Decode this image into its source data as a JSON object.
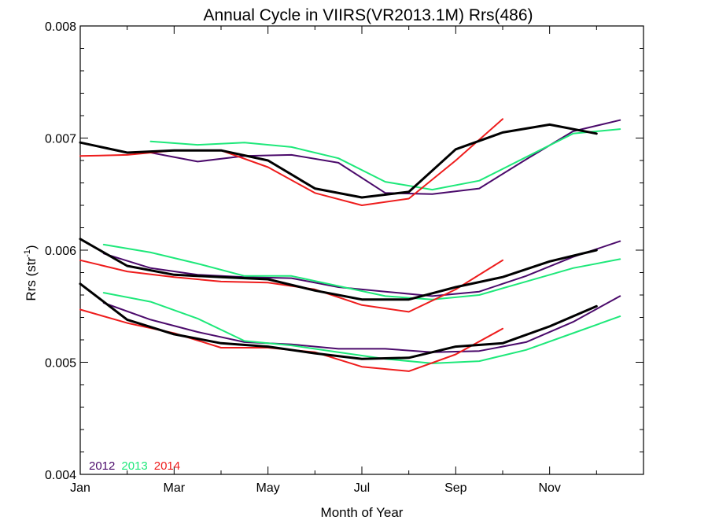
{
  "chart_data": {
    "type": "line",
    "title": "Annual Cycle in VIIRS(VR2013.1M) Rrs(486)",
    "xlabel": "Month of Year",
    "ylabel_main": "Rrs (str",
    "ylabel_sup": "-1",
    "ylabel_close": ")",
    "xlim": [
      1,
      13
    ],
    "ylim": [
      0.004,
      0.008
    ],
    "xticks": [
      {
        "value": 1,
        "label": "Jan"
      },
      {
        "value": 3,
        "label": "Mar"
      },
      {
        "value": 5,
        "label": "May"
      },
      {
        "value": 7,
        "label": "Jul"
      },
      {
        "value": 9,
        "label": "Sep"
      },
      {
        "value": 11,
        "label": "Nov"
      }
    ],
    "xminor": [
      2,
      4,
      6,
      8,
      10,
      12
    ],
    "yticks": [
      {
        "value": 0.004,
        "label": "0.004"
      },
      {
        "value": 0.005,
        "label": "0.005"
      },
      {
        "value": 0.006,
        "label": "0.006"
      },
      {
        "value": 0.007,
        "label": "0.007"
      },
      {
        "value": 0.008,
        "label": "0.008"
      }
    ],
    "legend_position": "bottom-left",
    "legend": [
      {
        "label": "2012",
        "color": "#4b0a6b"
      },
      {
        "label": "2013",
        "color": "#1ee87a"
      },
      {
        "label": "2014",
        "color": "#ee1c1c"
      }
    ],
    "series": [
      {
        "group": "upper",
        "year": "2012",
        "color": "#4b0a6b",
        "width": 2,
        "x": [
          2.5,
          3.5,
          4.5,
          5.5,
          6.5,
          7.5,
          8.5,
          9.5,
          10.5,
          11.5,
          12.5
        ],
        "y": [
          0.00687,
          0.00679,
          0.00684,
          0.00685,
          0.00678,
          0.00651,
          0.0065,
          0.00655,
          0.00681,
          0.00706,
          0.00716
        ]
      },
      {
        "group": "upper",
        "year": "2013",
        "color": "#1ee87a",
        "width": 2,
        "x": [
          2.5,
          3.5,
          4.5,
          5.5,
          6.5,
          7.5,
          8.5,
          9.5,
          10.5,
          11.5,
          12.5
        ],
        "y": [
          0.00697,
          0.00694,
          0.00696,
          0.00692,
          0.00682,
          0.00661,
          0.00654,
          0.00662,
          0.00683,
          0.00704,
          0.00708
        ]
      },
      {
        "group": "upper",
        "year": "2014",
        "color": "#ee1c1c",
        "width": 2,
        "x": [
          1,
          2,
          3,
          4,
          5,
          6,
          7,
          8,
          9,
          10
        ],
        "y": [
          0.00684,
          0.00685,
          0.00689,
          0.00689,
          0.00674,
          0.00651,
          0.0064,
          0.00646,
          0.0068,
          0.00717
        ]
      },
      {
        "group": "upper",
        "year": "mean",
        "color": "#000000",
        "width": 3,
        "x": [
          1,
          2,
          3,
          4,
          5,
          6,
          7,
          8,
          9,
          10,
          11,
          12
        ],
        "y": [
          0.00696,
          0.00687,
          0.00689,
          0.00689,
          0.0068,
          0.00655,
          0.00647,
          0.00652,
          0.0069,
          0.00705,
          0.00712,
          0.00704
        ]
      },
      {
        "group": "middle",
        "year": "2012",
        "color": "#4b0a6b",
        "width": 2,
        "x": [
          1.5,
          2.5,
          3.5,
          4.5,
          5.5,
          6.5,
          7.5,
          8.5,
          9.5,
          10.5,
          11.5,
          12.5
        ],
        "y": [
          0.00597,
          0.00584,
          0.00578,
          0.00576,
          0.00575,
          0.00567,
          0.00563,
          0.00559,
          0.00563,
          0.00577,
          0.00594,
          0.00608
        ]
      },
      {
        "group": "middle",
        "year": "2013",
        "color": "#1ee87a",
        "width": 2,
        "x": [
          1.5,
          2.5,
          3.5,
          4.5,
          5.5,
          6.5,
          7.5,
          8.5,
          9.5,
          10.5,
          11.5,
          12.5
        ],
        "y": [
          0.00605,
          0.00598,
          0.00588,
          0.00577,
          0.00577,
          0.00568,
          0.00559,
          0.00556,
          0.0056,
          0.00572,
          0.00584,
          0.00592
        ]
      },
      {
        "group": "middle",
        "year": "2014",
        "color": "#ee1c1c",
        "width": 2,
        "x": [
          1,
          2,
          3,
          4,
          5,
          6,
          7,
          8,
          9,
          10
        ],
        "y": [
          0.00591,
          0.00581,
          0.00576,
          0.00572,
          0.00571,
          0.00565,
          0.00551,
          0.00545,
          0.00565,
          0.00591
        ]
      },
      {
        "group": "middle",
        "year": "mean",
        "color": "#000000",
        "width": 3,
        "x": [
          1,
          2,
          3,
          4,
          5,
          6,
          7,
          8,
          9,
          10,
          11,
          12
        ],
        "y": [
          0.0061,
          0.00586,
          0.00578,
          0.00576,
          0.00574,
          0.00564,
          0.00556,
          0.00556,
          0.00567,
          0.00576,
          0.0059,
          0.006
        ]
      },
      {
        "group": "lower",
        "year": "2012",
        "color": "#4b0a6b",
        "width": 2,
        "x": [
          1.5,
          2.5,
          3.5,
          4.5,
          5.5,
          6.5,
          7.5,
          8.5,
          9.5,
          10.5,
          11.5,
          12.5
        ],
        "y": [
          0.00553,
          0.00538,
          0.00527,
          0.00518,
          0.00516,
          0.00512,
          0.00512,
          0.00509,
          0.0051,
          0.00518,
          0.00536,
          0.00559
        ]
      },
      {
        "group": "lower",
        "year": "2013",
        "color": "#1ee87a",
        "width": 2,
        "x": [
          1.5,
          2.5,
          3.5,
          4.5,
          5.5,
          6.5,
          7.5,
          8.5,
          9.5,
          10.5,
          11.5,
          12.5
        ],
        "y": [
          0.00562,
          0.00554,
          0.00539,
          0.00519,
          0.00515,
          0.00509,
          0.00503,
          0.00499,
          0.00501,
          0.00511,
          0.00526,
          0.00541
        ]
      },
      {
        "group": "lower",
        "year": "2014",
        "color": "#ee1c1c",
        "width": 2,
        "x": [
          1,
          2,
          3,
          4,
          5,
          6,
          7,
          8,
          9,
          10
        ],
        "y": [
          0.00547,
          0.00535,
          0.00526,
          0.00513,
          0.00513,
          0.00509,
          0.00496,
          0.00492,
          0.00507,
          0.0053
        ]
      },
      {
        "group": "lower",
        "year": "mean",
        "color": "#000000",
        "width": 3,
        "x": [
          1,
          2,
          3,
          4,
          5,
          6,
          7,
          8,
          9,
          10,
          11,
          12
        ],
        "y": [
          0.0057,
          0.00538,
          0.00525,
          0.00517,
          0.00514,
          0.00508,
          0.00503,
          0.00504,
          0.00514,
          0.00517,
          0.00532,
          0.0055
        ]
      }
    ]
  }
}
